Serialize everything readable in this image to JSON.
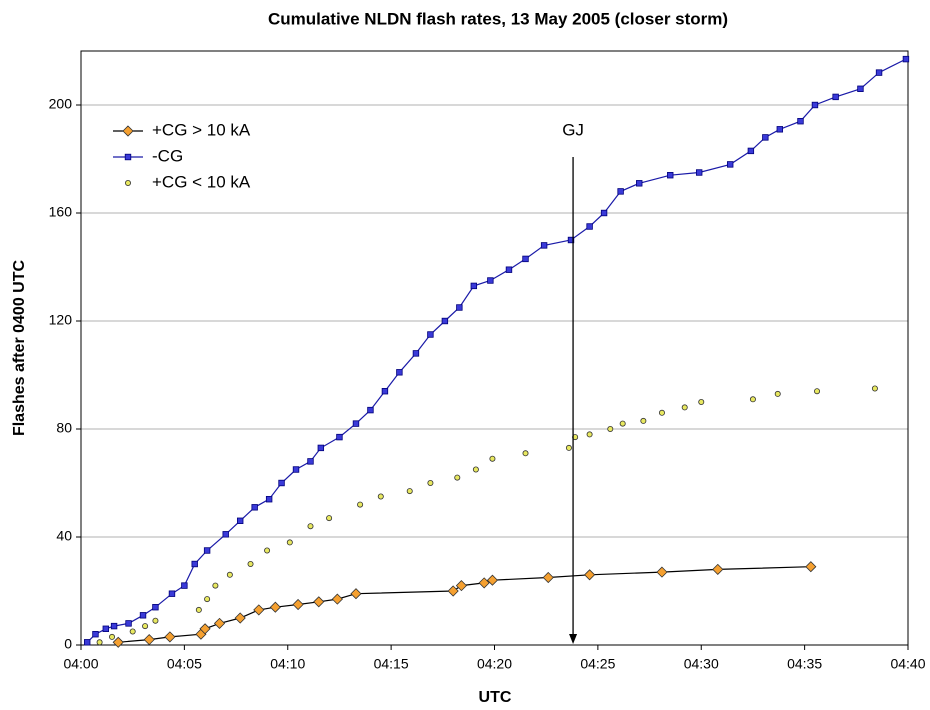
{
  "chart_data": {
    "type": "line",
    "title": "Cumulative NLDN flash rates, 13 May 2005  (closer storm)",
    "xlabel": "UTC",
    "ylabel": "Flashes after 0400 UTC",
    "xlim": [
      0,
      40
    ],
    "xticks": [
      {
        "value": 0,
        "label": "04:00"
      },
      {
        "value": 5,
        "label": "04:05"
      },
      {
        "value": 10,
        "label": "04:10"
      },
      {
        "value": 15,
        "label": "04:15"
      },
      {
        "value": 20,
        "label": "04:20"
      },
      {
        "value": 25,
        "label": "04:25"
      },
      {
        "value": 30,
        "label": "04:30"
      },
      {
        "value": 35,
        "label": "04:35"
      },
      {
        "value": 40,
        "label": "04:40"
      }
    ],
    "ylim": [
      0,
      220
    ],
    "yticks": [
      0,
      40,
      80,
      120,
      160,
      200
    ],
    "grid": true,
    "legend": "upper left",
    "annotation": {
      "text": "GJ",
      "x": 23.8
    },
    "series": [
      {
        "name": "+CG > 10 kA",
        "color": "#f5a030",
        "line_color": "#000000",
        "marker": "diamond",
        "line": true,
        "x": [
          1.8,
          3.3,
          4.3,
          5.8,
          6.0,
          6.7,
          7.7,
          8.6,
          9.4,
          10.5,
          11.5,
          12.4,
          13.3,
          18.0,
          18.4,
          19.5,
          19.9,
          22.6,
          24.6,
          28.1,
          30.8,
          35.3
        ],
        "values": [
          1,
          2,
          3,
          4,
          6,
          8,
          10,
          13,
          14,
          15,
          16,
          17,
          19,
          20,
          22,
          23,
          24,
          25,
          26,
          27,
          28,
          29
        ]
      },
      {
        "name": "-CG",
        "color": "#3a3ad8",
        "line_color": "#1a1aa8",
        "marker": "square",
        "line": true,
        "x": [
          0.3,
          0.7,
          1.2,
          1.6,
          2.3,
          3.0,
          3.6,
          4.4,
          5.0,
          5.5,
          6.1,
          7.0,
          7.7,
          8.4,
          9.1,
          9.7,
          10.4,
          11.1,
          11.6,
          12.5,
          13.3,
          14.0,
          14.7,
          15.4,
          16.2,
          16.9,
          17.6,
          18.3,
          19.0,
          19.8,
          20.7,
          21.5,
          22.4,
          23.7,
          24.6,
          25.3,
          26.1,
          27.0,
          28.5,
          29.9,
          31.4,
          32.4,
          33.1,
          33.8,
          34.8,
          35.5,
          36.5,
          37.7,
          38.6,
          39.9
        ],
        "values": [
          1,
          4,
          6,
          7,
          8,
          11,
          14,
          19,
          22,
          30,
          35,
          41,
          46,
          51,
          54,
          60,
          65,
          68,
          73,
          77,
          82,
          87,
          94,
          101,
          108,
          115,
          120,
          125,
          133,
          135,
          139,
          143,
          148,
          150,
          155,
          160,
          168,
          171,
          174,
          175,
          178,
          183,
          188,
          191,
          194,
          200,
          203,
          206,
          212,
          217
        ]
      },
      {
        "name": "+CG < 10 kA",
        "color": "#e8e860",
        "line_color": "#333333",
        "marker": "circle",
        "line": false,
        "x": [
          0.9,
          1.5,
          2.5,
          3.1,
          3.6,
          5.7,
          6.1,
          6.5,
          7.2,
          8.2,
          9.0,
          10.1,
          11.1,
          12.0,
          13.5,
          14.5,
          15.9,
          16.9,
          18.2,
          19.1,
          19.9,
          21.5,
          23.6,
          23.9,
          24.6,
          25.6,
          26.2,
          27.2,
          28.1,
          29.2,
          30.0,
          32.5,
          33.7,
          35.6,
          38.4
        ],
        "values": [
          1,
          3,
          5,
          7,
          9,
          13,
          17,
          22,
          26,
          30,
          35,
          38,
          44,
          47,
          52,
          55,
          57,
          60,
          62,
          65,
          69,
          71,
          73,
          77,
          78,
          80,
          82,
          83,
          86,
          88,
          90,
          91,
          93,
          94,
          95
        ]
      }
    ]
  }
}
